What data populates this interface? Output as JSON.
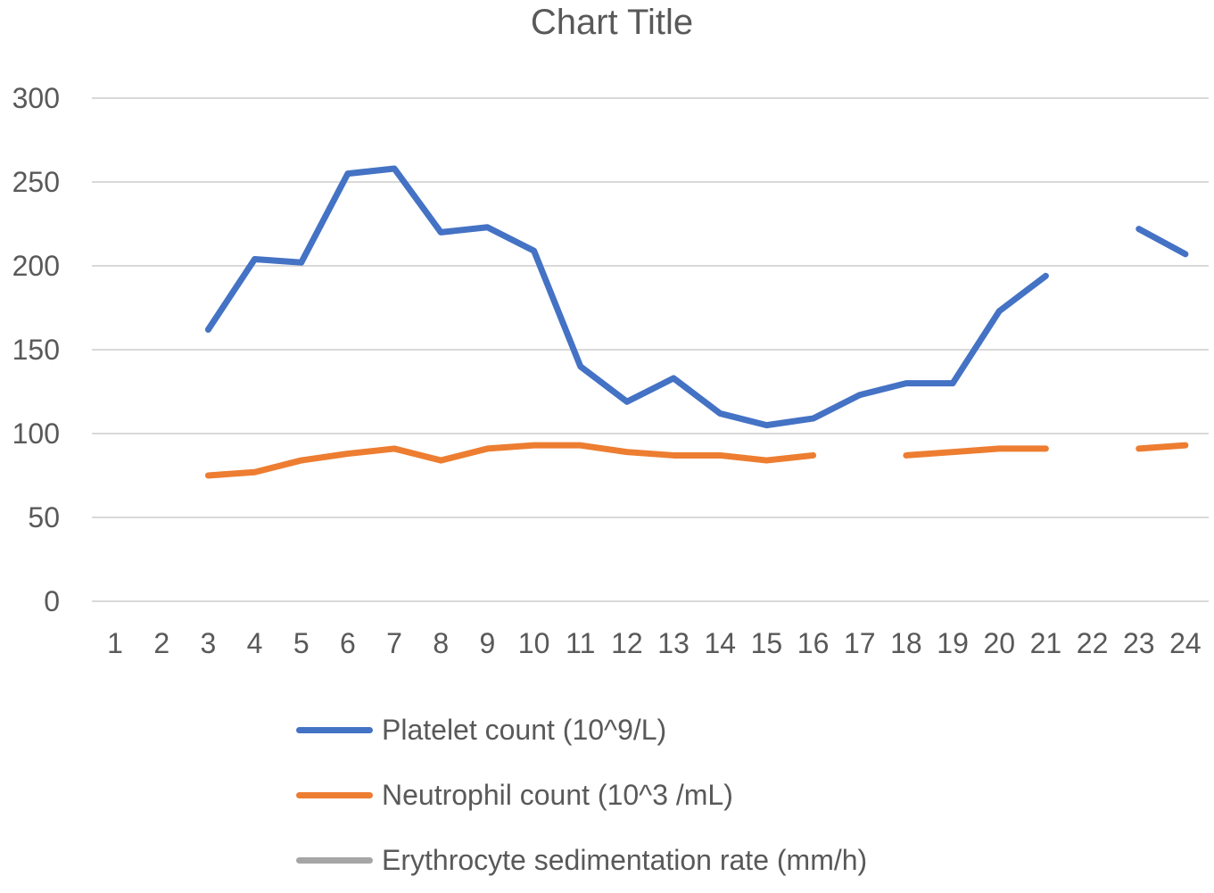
{
  "chart_data": {
    "type": "line",
    "title": "Chart Title",
    "xlabel": "",
    "ylabel": "",
    "categories": [
      "1",
      "2",
      "3",
      "4",
      "5",
      "6",
      "7",
      "8",
      "9",
      "10",
      "11",
      "12",
      "13",
      "14",
      "15",
      "16",
      "17",
      "18",
      "19",
      "20",
      "21",
      "22",
      "23",
      "24"
    ],
    "ylim": [
      0,
      300
    ],
    "yticks": [
      "0",
      "50",
      "100",
      "150",
      "200",
      "250",
      "300"
    ],
    "grid": true,
    "legend_position": "bottom",
    "series": [
      {
        "name": "Platelet count (10^9/L)",
        "color": "#4472C4",
        "values": [
          null,
          null,
          162,
          204,
          202,
          255,
          258,
          220,
          223,
          209,
          140,
          119,
          133,
          112,
          105,
          109,
          123,
          130,
          130,
          173,
          194,
          null,
          222,
          207
        ]
      },
      {
        "name": "Neutrophil count (10^3 /mL)",
        "color": "#ED7D31",
        "values": [
          null,
          null,
          75,
          77,
          84,
          88,
          91,
          84,
          91,
          93,
          93,
          89,
          87,
          87,
          84,
          87,
          null,
          87,
          89,
          91,
          91,
          null,
          91,
          93
        ]
      },
      {
        "name": "Erythrocyte sedimentation rate (mm/h)",
        "color": "#A5A5A5",
        "values": [
          null,
          null,
          null,
          null,
          null,
          null,
          null,
          null,
          null,
          null,
          null,
          null,
          null,
          null,
          null,
          null,
          null,
          null,
          null,
          null,
          null,
          null,
          null,
          null
        ]
      }
    ]
  }
}
